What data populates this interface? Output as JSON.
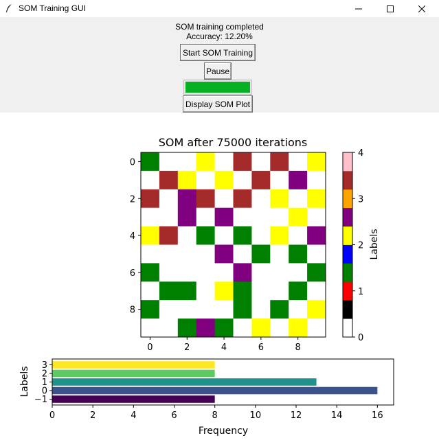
{
  "window": {
    "title": "SOM Training GUI",
    "app_icon": "feather-icon",
    "minimize_icon": "minimize-icon",
    "maximize_icon": "maximize-icon",
    "close_icon": "close-icon"
  },
  "status": {
    "line1": "SOM training completed",
    "line2": "Accuracy: 12.20%"
  },
  "buttons": {
    "start": "Start SOM Training",
    "pause": "Pause",
    "display": "Display SOM Plot"
  },
  "progress": {
    "value": 1.0,
    "color": "#06b025"
  },
  "chart_data": [
    {
      "type": "heatmap",
      "title": "SOM after 75000 iterations",
      "xticks": [
        0,
        2,
        4,
        6,
        8
      ],
      "yticks": [
        0,
        2,
        4,
        6,
        8
      ],
      "grid_size": 10,
      "cmap": [
        "#ffffff",
        "#000000",
        "#ff0000",
        "#008000",
        "#0000ff",
        "#ffff00",
        "#800080",
        "#ffa500",
        "#a52a2a",
        "#ffc0cb"
      ],
      "colorbar": {
        "label": "Labels",
        "ticks": [
          0,
          1,
          2,
          3,
          4
        ],
        "range": [
          0,
          4
        ]
      },
      "grid_values": [
        [
          1.5,
          0,
          0,
          2,
          0,
          3.5,
          0,
          3.5,
          0,
          2
        ],
        [
          0,
          3.5,
          2,
          0,
          2,
          0,
          3.5,
          0,
          2.5,
          0
        ],
        [
          3.5,
          0,
          2.5,
          3.5,
          0,
          3.5,
          0,
          2,
          0,
          2
        ],
        [
          0,
          0,
          2.5,
          0,
          2.5,
          0,
          0,
          0,
          2,
          0
        ],
        [
          2,
          3.5,
          0,
          1.5,
          0,
          1.5,
          0,
          2,
          0,
          2.5
        ],
        [
          0,
          0,
          0,
          0,
          2.5,
          0,
          1.5,
          0,
          1.5,
          0
        ],
        [
          1.5,
          0,
          0,
          0,
          0,
          2.5,
          0,
          0,
          0,
          1.5
        ],
        [
          0,
          1.5,
          1.5,
          0,
          2,
          1.5,
          0,
          0,
          1.5,
          0
        ],
        [
          1.5,
          0,
          0,
          0,
          0,
          1.5,
          0,
          1.5,
          0,
          2
        ],
        [
          0,
          0,
          1.5,
          2.5,
          1.5,
          0,
          2,
          0,
          2,
          0
        ]
      ]
    },
    {
      "type": "bar",
      "orientation": "horizontal",
      "categories": [
        "-1",
        "0",
        "1",
        "2",
        "3"
      ],
      "category_labels": [
        "−1",
        "0",
        "1",
        "2",
        "3"
      ],
      "values": [
        8,
        16,
        13,
        8,
        8
      ],
      "colors": [
        "#440154",
        "#3b528b",
        "#21918c",
        "#5ec962",
        "#fde725"
      ],
      "xlabel": "Frequency",
      "ylabel": "Labels",
      "xticks": [
        0,
        2,
        4,
        6,
        8,
        10,
        12,
        14,
        16
      ],
      "xlim": [
        0,
        16.8
      ]
    }
  ]
}
